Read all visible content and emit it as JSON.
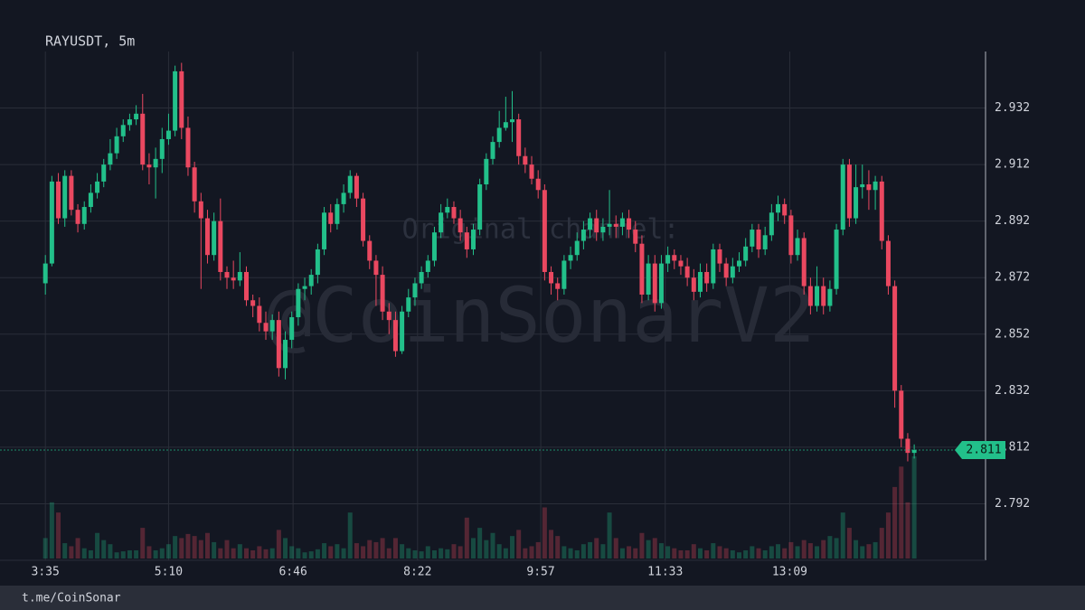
{
  "chart_data": {
    "type": "candlestick",
    "title": "RAYUSDT, 5m",
    "watermark_caption": "Original channel:",
    "watermark": "@CoinSonarV2",
    "footer": "t.me/CoinSonar",
    "up_color": "#22c08a",
    "down_color": "#ea4860",
    "grid": true,
    "xlim": [
      180,
      940
    ],
    "ylim": [
      2.772,
      2.952
    ],
    "volume_lim": [
      0,
      100
    ],
    "xticks": [
      {
        "value": 215,
        "label": "3:35"
      },
      {
        "value": 310,
        "label": "5:10"
      },
      {
        "value": 406,
        "label": "6:46"
      },
      {
        "value": 502,
        "label": "8:22"
      },
      {
        "value": 597,
        "label": "9:57"
      },
      {
        "value": 693,
        "label": "11:33"
      },
      {
        "value": 789,
        "label": "13:09"
      }
    ],
    "yticks": [
      2.792,
      2.812,
      2.832,
      2.852,
      2.872,
      2.892,
      2.912,
      2.932
    ],
    "last_price": 2.811,
    "candles": [
      [
        215,
        2.87,
        2.88,
        2.866,
        2.877,
        20
      ],
      [
        220,
        2.877,
        2.908,
        2.876,
        2.906,
        55
      ],
      [
        225,
        2.906,
        2.909,
        2.891,
        2.893,
        45
      ],
      [
        230,
        2.893,
        2.91,
        2.89,
        2.908,
        15
      ],
      [
        235,
        2.908,
        2.91,
        2.894,
        2.896,
        12
      ],
      [
        240,
        2.896,
        2.898,
        2.888,
        2.891,
        20
      ],
      [
        245,
        2.891,
        2.899,
        2.889,
        2.897,
        10
      ],
      [
        250,
        2.897,
        2.905,
        2.895,
        2.902,
        8
      ],
      [
        255,
        2.902,
        2.909,
        2.9,
        2.906,
        25
      ],
      [
        260,
        2.906,
        2.914,
        2.904,
        2.912,
        18
      ],
      [
        265,
        2.912,
        2.921,
        2.91,
        2.916,
        14
      ],
      [
        270,
        2.916,
        2.925,
        2.914,
        2.922,
        6
      ],
      [
        275,
        2.922,
        2.928,
        2.92,
        2.926,
        7
      ],
      [
        280,
        2.926,
        2.93,
        2.924,
        2.928,
        8
      ],
      [
        285,
        2.928,
        2.933,
        2.926,
        2.93,
        8
      ],
      [
        290,
        2.93,
        2.937,
        2.91,
        2.912,
        30
      ],
      [
        295,
        2.912,
        2.916,
        2.905,
        2.911,
        12
      ],
      [
        300,
        2.911,
        2.918,
        2.9,
        2.914,
        8
      ],
      [
        305,
        2.914,
        2.925,
        2.909,
        2.921,
        10
      ],
      [
        310,
        2.921,
        2.93,
        2.919,
        2.924,
        14
      ],
      [
        315,
        2.924,
        2.947,
        2.922,
        2.945,
        22
      ],
      [
        320,
        2.945,
        2.948,
        2.921,
        2.925,
        20
      ],
      [
        325,
        2.925,
        2.929,
        2.908,
        2.911,
        24
      ],
      [
        330,
        2.911,
        2.913,
        2.895,
        2.899,
        22
      ],
      [
        335,
        2.899,
        2.902,
        2.868,
        2.893,
        18
      ],
      [
        340,
        2.893,
        2.896,
        2.877,
        2.88,
        25
      ],
      [
        345,
        2.88,
        2.895,
        2.878,
        2.892,
        16
      ],
      [
        350,
        2.892,
        2.9,
        2.871,
        2.874,
        10
      ],
      [
        355,
        2.874,
        2.876,
        2.868,
        2.872,
        18
      ],
      [
        360,
        2.872,
        2.878,
        2.868,
        2.871,
        10
      ],
      [
        365,
        2.871,
        2.881,
        2.869,
        2.874,
        14
      ],
      [
        370,
        2.874,
        2.876,
        2.862,
        2.864,
        10
      ],
      [
        375,
        2.864,
        2.866,
        2.858,
        2.862,
        8
      ],
      [
        380,
        2.862,
        2.865,
        2.853,
        2.856,
        12
      ],
      [
        385,
        2.856,
        2.86,
        2.85,
        2.853,
        9
      ],
      [
        390,
        2.853,
        2.859,
        2.85,
        2.857,
        10
      ],
      [
        395,
        2.857,
        2.86,
        2.837,
        2.84,
        28
      ],
      [
        400,
        2.84,
        2.853,
        2.836,
        2.85,
        20
      ],
      [
        405,
        2.85,
        2.86,
        2.847,
        2.858,
        12
      ],
      [
        410,
        2.858,
        2.87,
        2.855,
        2.868,
        10
      ],
      [
        415,
        2.868,
        2.872,
        2.864,
        2.869,
        6
      ],
      [
        420,
        2.869,
        2.875,
        2.866,
        2.873,
        7
      ],
      [
        425,
        2.873,
        2.884,
        2.87,
        2.882,
        9
      ],
      [
        430,
        2.882,
        2.897,
        2.88,
        2.895,
        15
      ],
      [
        435,
        2.895,
        2.898,
        2.888,
        2.891,
        12
      ],
      [
        440,
        2.891,
        2.9,
        2.889,
        2.898,
        14
      ],
      [
        445,
        2.898,
        2.905,
        2.895,
        2.902,
        10
      ],
      [
        450,
        2.902,
        2.91,
        2.9,
        2.908,
        45
      ],
      [
        455,
        2.908,
        2.909,
        2.897,
        2.9,
        15
      ],
      [
        460,
        2.9,
        2.902,
        2.883,
        2.885,
        12
      ],
      [
        465,
        2.885,
        2.887,
        2.875,
        2.878,
        18
      ],
      [
        470,
        2.878,
        2.88,
        2.862,
        2.873,
        16
      ],
      [
        475,
        2.873,
        2.876,
        2.857,
        2.86,
        20
      ],
      [
        480,
        2.86,
        2.863,
        2.852,
        2.857,
        10
      ],
      [
        485,
        2.857,
        2.86,
        2.844,
        2.846,
        20
      ],
      [
        490,
        2.846,
        2.862,
        2.845,
        2.86,
        14
      ],
      [
        495,
        2.86,
        2.868,
        2.858,
        2.865,
        10
      ],
      [
        500,
        2.865,
        2.872,
        2.862,
        2.87,
        8
      ],
      [
        505,
        2.87,
        2.876,
        2.868,
        2.874,
        7
      ],
      [
        510,
        2.874,
        2.88,
        2.872,
        2.878,
        12
      ],
      [
        515,
        2.878,
        2.89,
        2.876,
        2.888,
        8
      ],
      [
        520,
        2.888,
        2.898,
        2.886,
        2.895,
        10
      ],
      [
        525,
        2.895,
        2.9,
        2.893,
        2.897,
        9
      ],
      [
        530,
        2.897,
        2.899,
        2.891,
        2.893,
        14
      ],
      [
        535,
        2.893,
        2.896,
        2.885,
        2.888,
        12
      ],
      [
        540,
        2.888,
        2.89,
        2.879,
        2.882,
        40
      ],
      [
        545,
        2.882,
        2.891,
        2.88,
        2.889,
        20
      ],
      [
        550,
        2.889,
        2.907,
        2.887,
        2.905,
        30
      ],
      [
        555,
        2.905,
        2.916,
        2.903,
        2.914,
        18
      ],
      [
        560,
        2.914,
        2.922,
        2.912,
        2.92,
        25
      ],
      [
        565,
        2.92,
        2.931,
        2.918,
        2.925,
        14
      ],
      [
        570,
        2.925,
        2.936,
        2.924,
        2.927,
        10
      ],
      [
        575,
        2.927,
        2.938,
        2.92,
        2.928,
        22
      ],
      [
        580,
        2.928,
        2.93,
        2.912,
        2.915,
        28
      ],
      [
        585,
        2.915,
        2.918,
        2.909,
        2.912,
        10
      ],
      [
        590,
        2.912,
        2.915,
        2.905,
        2.907,
        12
      ],
      [
        595,
        2.907,
        2.91,
        2.9,
        2.903,
        16
      ],
      [
        600,
        2.903,
        2.905,
        2.871,
        2.874,
        50
      ],
      [
        605,
        2.874,
        2.876,
        2.866,
        2.87,
        28
      ],
      [
        610,
        2.87,
        2.872,
        2.864,
        2.868,
        22
      ],
      [
        615,
        2.868,
        2.88,
        2.866,
        2.878,
        12
      ],
      [
        620,
        2.878,
        2.883,
        2.875,
        2.88,
        10
      ],
      [
        625,
        2.88,
        2.888,
        2.878,
        2.885,
        8
      ],
      [
        630,
        2.885,
        2.892,
        2.882,
        2.889,
        14
      ],
      [
        635,
        2.889,
        2.895,
        2.886,
        2.893,
        16
      ],
      [
        640,
        2.893,
        2.896,
        2.885,
        2.888,
        20
      ],
      [
        645,
        2.888,
        2.893,
        2.885,
        2.89,
        14
      ],
      [
        650,
        2.89,
        2.903,
        2.887,
        2.891,
        45
      ],
      [
        655,
        2.891,
        2.894,
        2.886,
        2.89,
        20
      ],
      [
        660,
        2.89,
        2.895,
        2.887,
        2.893,
        10
      ],
      [
        665,
        2.893,
        2.896,
        2.886,
        2.889,
        12
      ],
      [
        670,
        2.889,
        2.892,
        2.881,
        2.884,
        10
      ],
      [
        675,
        2.884,
        2.887,
        2.863,
        2.866,
        25
      ],
      [
        680,
        2.866,
        2.88,
        2.864,
        2.877,
        18
      ],
      [
        685,
        2.877,
        2.88,
        2.86,
        2.863,
        20
      ],
      [
        690,
        2.863,
        2.88,
        2.861,
        2.877,
        15
      ],
      [
        695,
        2.877,
        2.883,
        2.874,
        2.88,
        12
      ],
      [
        700,
        2.88,
        2.882,
        2.875,
        2.878,
        10
      ],
      [
        705,
        2.878,
        2.88,
        2.873,
        2.876,
        8
      ],
      [
        710,
        2.876,
        2.879,
        2.869,
        2.872,
        8
      ],
      [
        715,
        2.872,
        2.875,
        2.864,
        2.867,
        14
      ],
      [
        720,
        2.867,
        2.877,
        2.865,
        2.874,
        10
      ],
      [
        725,
        2.874,
        2.877,
        2.867,
        2.87,
        8
      ],
      [
        730,
        2.87,
        2.884,
        2.868,
        2.882,
        15
      ],
      [
        735,
        2.882,
        2.884,
        2.874,
        2.877,
        12
      ],
      [
        740,
        2.877,
        2.879,
        2.869,
        2.872,
        10
      ],
      [
        745,
        2.872,
        2.879,
        2.87,
        2.876,
        8
      ],
      [
        750,
        2.876,
        2.881,
        2.874,
        2.878,
        6
      ],
      [
        755,
        2.878,
        2.886,
        2.876,
        2.883,
        8
      ],
      [
        760,
        2.883,
        2.891,
        2.881,
        2.889,
        12
      ],
      [
        765,
        2.889,
        2.891,
        2.879,
        2.882,
        10
      ],
      [
        770,
        2.882,
        2.89,
        2.88,
        2.887,
        8
      ],
      [
        775,
        2.887,
        2.898,
        2.885,
        2.895,
        12
      ],
      [
        780,
        2.895,
        2.901,
        2.892,
        2.898,
        14
      ],
      [
        785,
        2.898,
        2.9,
        2.891,
        2.894,
        10
      ],
      [
        790,
        2.894,
        2.896,
        2.877,
        2.88,
        16
      ],
      [
        795,
        2.88,
        2.889,
        2.878,
        2.886,
        12
      ],
      [
        800,
        2.886,
        2.888,
        2.866,
        2.869,
        18
      ],
      [
        805,
        2.869,
        2.872,
        2.859,
        2.862,
        15
      ],
      [
        810,
        2.862,
        2.876,
        2.86,
        2.869,
        12
      ],
      [
        815,
        2.869,
        2.872,
        2.859,
        2.862,
        18
      ],
      [
        820,
        2.862,
        2.871,
        2.86,
        2.868,
        22
      ],
      [
        825,
        2.868,
        2.891,
        2.866,
        2.889,
        20
      ],
      [
        830,
        2.889,
        2.914,
        2.887,
        2.912,
        45
      ],
      [
        835,
        2.912,
        2.914,
        2.89,
        2.893,
        30
      ],
      [
        840,
        2.893,
        2.912,
        2.891,
        2.904,
        18
      ],
      [
        845,
        2.904,
        2.912,
        2.9,
        2.905,
        12
      ],
      [
        850,
        2.905,
        2.91,
        2.896,
        2.903,
        14
      ],
      [
        855,
        2.903,
        2.908,
        2.896,
        2.906,
        16
      ],
      [
        860,
        2.906,
        2.908,
        2.882,
        2.885,
        30
      ],
      [
        865,
        2.885,
        2.887,
        2.866,
        2.869,
        45
      ],
      [
        870,
        2.869,
        2.871,
        2.826,
        2.832,
        70
      ],
      [
        875,
        2.832,
        2.834,
        2.812,
        2.815,
        90
      ],
      [
        880,
        2.815,
        2.817,
        2.807,
        2.81,
        55
      ],
      [
        885,
        2.81,
        2.813,
        2.808,
        2.811,
        100
      ]
    ]
  }
}
